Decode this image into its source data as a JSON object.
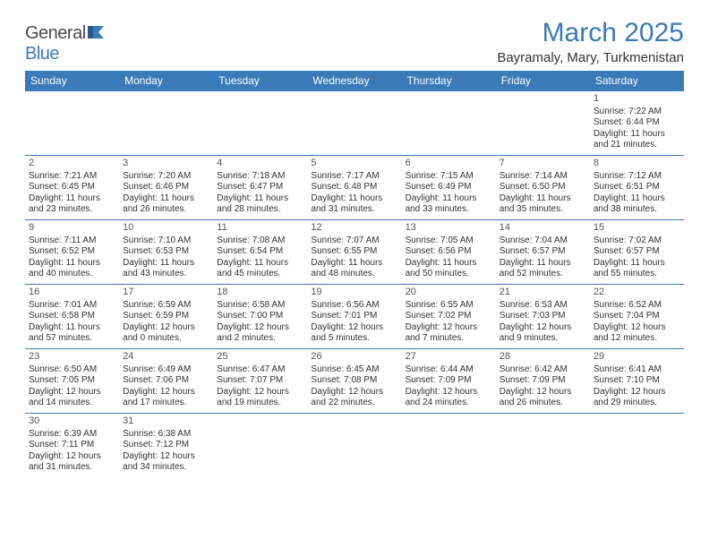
{
  "logo": {
    "text_general": "General",
    "text_blue": "Blue"
  },
  "title": "March 2025",
  "location": "Bayramaly, Mary, Turkmenistan",
  "colors": {
    "brand_blue": "#3a7ab8",
    "text_dark": "#333333",
    "white": "#ffffff",
    "day_num": "#555555"
  },
  "weekdays": [
    "Sunday",
    "Monday",
    "Tuesday",
    "Wednesday",
    "Thursday",
    "Friday",
    "Saturday"
  ],
  "weeks": [
    [
      null,
      null,
      null,
      null,
      null,
      null,
      {
        "day": "1",
        "sunrise": "Sunrise: 7:22 AM",
        "sunset": "Sunset: 6:44 PM",
        "daylight1": "Daylight: 11 hours",
        "daylight2": "and 21 minutes."
      }
    ],
    [
      {
        "day": "2",
        "sunrise": "Sunrise: 7:21 AM",
        "sunset": "Sunset: 6:45 PM",
        "daylight1": "Daylight: 11 hours",
        "daylight2": "and 23 minutes."
      },
      {
        "day": "3",
        "sunrise": "Sunrise: 7:20 AM",
        "sunset": "Sunset: 6:46 PM",
        "daylight1": "Daylight: 11 hours",
        "daylight2": "and 26 minutes."
      },
      {
        "day": "4",
        "sunrise": "Sunrise: 7:18 AM",
        "sunset": "Sunset: 6:47 PM",
        "daylight1": "Daylight: 11 hours",
        "daylight2": "and 28 minutes."
      },
      {
        "day": "5",
        "sunrise": "Sunrise: 7:17 AM",
        "sunset": "Sunset: 6:48 PM",
        "daylight1": "Daylight: 11 hours",
        "daylight2": "and 31 minutes."
      },
      {
        "day": "6",
        "sunrise": "Sunrise: 7:15 AM",
        "sunset": "Sunset: 6:49 PM",
        "daylight1": "Daylight: 11 hours",
        "daylight2": "and 33 minutes."
      },
      {
        "day": "7",
        "sunrise": "Sunrise: 7:14 AM",
        "sunset": "Sunset: 6:50 PM",
        "daylight1": "Daylight: 11 hours",
        "daylight2": "and 35 minutes."
      },
      {
        "day": "8",
        "sunrise": "Sunrise: 7:12 AM",
        "sunset": "Sunset: 6:51 PM",
        "daylight1": "Daylight: 11 hours",
        "daylight2": "and 38 minutes."
      }
    ],
    [
      {
        "day": "9",
        "sunrise": "Sunrise: 7:11 AM",
        "sunset": "Sunset: 6:52 PM",
        "daylight1": "Daylight: 11 hours",
        "daylight2": "and 40 minutes."
      },
      {
        "day": "10",
        "sunrise": "Sunrise: 7:10 AM",
        "sunset": "Sunset: 6:53 PM",
        "daylight1": "Daylight: 11 hours",
        "daylight2": "and 43 minutes."
      },
      {
        "day": "11",
        "sunrise": "Sunrise: 7:08 AM",
        "sunset": "Sunset: 6:54 PM",
        "daylight1": "Daylight: 11 hours",
        "daylight2": "and 45 minutes."
      },
      {
        "day": "12",
        "sunrise": "Sunrise: 7:07 AM",
        "sunset": "Sunset: 6:55 PM",
        "daylight1": "Daylight: 11 hours",
        "daylight2": "and 48 minutes."
      },
      {
        "day": "13",
        "sunrise": "Sunrise: 7:05 AM",
        "sunset": "Sunset: 6:56 PM",
        "daylight1": "Daylight: 11 hours",
        "daylight2": "and 50 minutes."
      },
      {
        "day": "14",
        "sunrise": "Sunrise: 7:04 AM",
        "sunset": "Sunset: 6:57 PM",
        "daylight1": "Daylight: 11 hours",
        "daylight2": "and 52 minutes."
      },
      {
        "day": "15",
        "sunrise": "Sunrise: 7:02 AM",
        "sunset": "Sunset: 6:57 PM",
        "daylight1": "Daylight: 11 hours",
        "daylight2": "and 55 minutes."
      }
    ],
    [
      {
        "day": "16",
        "sunrise": "Sunrise: 7:01 AM",
        "sunset": "Sunset: 6:58 PM",
        "daylight1": "Daylight: 11 hours",
        "daylight2": "and 57 minutes."
      },
      {
        "day": "17",
        "sunrise": "Sunrise: 6:59 AM",
        "sunset": "Sunset: 6:59 PM",
        "daylight1": "Daylight: 12 hours",
        "daylight2": "and 0 minutes."
      },
      {
        "day": "18",
        "sunrise": "Sunrise: 6:58 AM",
        "sunset": "Sunset: 7:00 PM",
        "daylight1": "Daylight: 12 hours",
        "daylight2": "and 2 minutes."
      },
      {
        "day": "19",
        "sunrise": "Sunrise: 6:56 AM",
        "sunset": "Sunset: 7:01 PM",
        "daylight1": "Daylight: 12 hours",
        "daylight2": "and 5 minutes."
      },
      {
        "day": "20",
        "sunrise": "Sunrise: 6:55 AM",
        "sunset": "Sunset: 7:02 PM",
        "daylight1": "Daylight: 12 hours",
        "daylight2": "and 7 minutes."
      },
      {
        "day": "21",
        "sunrise": "Sunrise: 6:53 AM",
        "sunset": "Sunset: 7:03 PM",
        "daylight1": "Daylight: 12 hours",
        "daylight2": "and 9 minutes."
      },
      {
        "day": "22",
        "sunrise": "Sunrise: 6:52 AM",
        "sunset": "Sunset: 7:04 PM",
        "daylight1": "Daylight: 12 hours",
        "daylight2": "and 12 minutes."
      }
    ],
    [
      {
        "day": "23",
        "sunrise": "Sunrise: 6:50 AM",
        "sunset": "Sunset: 7:05 PM",
        "daylight1": "Daylight: 12 hours",
        "daylight2": "and 14 minutes."
      },
      {
        "day": "24",
        "sunrise": "Sunrise: 6:49 AM",
        "sunset": "Sunset: 7:06 PM",
        "daylight1": "Daylight: 12 hours",
        "daylight2": "and 17 minutes."
      },
      {
        "day": "25",
        "sunrise": "Sunrise: 6:47 AM",
        "sunset": "Sunset: 7:07 PM",
        "daylight1": "Daylight: 12 hours",
        "daylight2": "and 19 minutes."
      },
      {
        "day": "26",
        "sunrise": "Sunrise: 6:45 AM",
        "sunset": "Sunset: 7:08 PM",
        "daylight1": "Daylight: 12 hours",
        "daylight2": "and 22 minutes."
      },
      {
        "day": "27",
        "sunrise": "Sunrise: 6:44 AM",
        "sunset": "Sunset: 7:09 PM",
        "daylight1": "Daylight: 12 hours",
        "daylight2": "and 24 minutes."
      },
      {
        "day": "28",
        "sunrise": "Sunrise: 6:42 AM",
        "sunset": "Sunset: 7:09 PM",
        "daylight1": "Daylight: 12 hours",
        "daylight2": "and 26 minutes."
      },
      {
        "day": "29",
        "sunrise": "Sunrise: 6:41 AM",
        "sunset": "Sunset: 7:10 PM",
        "daylight1": "Daylight: 12 hours",
        "daylight2": "and 29 minutes."
      }
    ],
    [
      {
        "day": "30",
        "sunrise": "Sunrise: 6:39 AM",
        "sunset": "Sunset: 7:11 PM",
        "daylight1": "Daylight: 12 hours",
        "daylight2": "and 31 minutes."
      },
      {
        "day": "31",
        "sunrise": "Sunrise: 6:38 AM",
        "sunset": "Sunset: 7:12 PM",
        "daylight1": "Daylight: 12 hours",
        "daylight2": "and 34 minutes."
      },
      null,
      null,
      null,
      null,
      null
    ]
  ]
}
